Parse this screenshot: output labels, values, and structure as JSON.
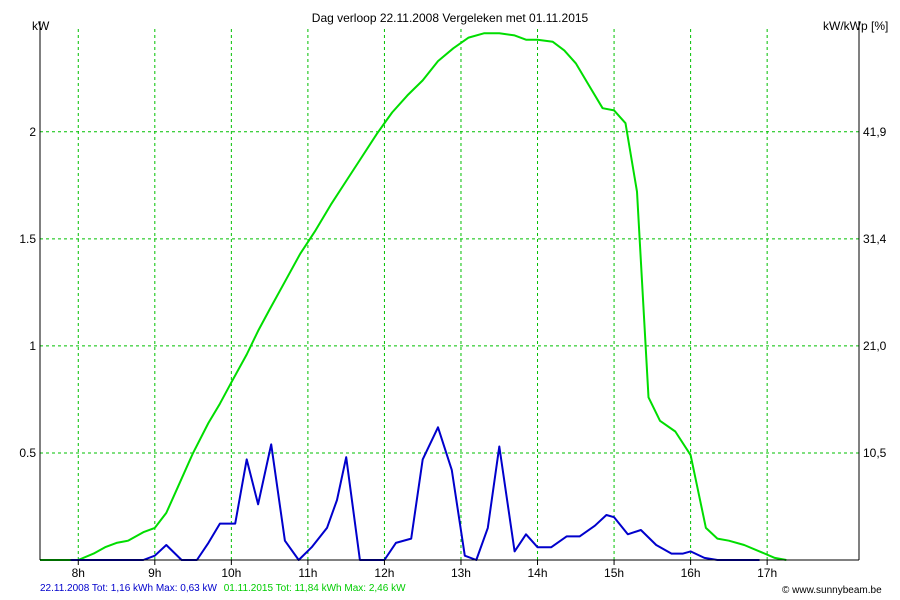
{
  "header": {
    "title": "Dag  verloop 22.11.2008   Vergeleken met 01.11.2015",
    "left_unit": "kW",
    "right_unit": "kW/kWp [%]"
  },
  "footer": {
    "series1_summary": "22.11.2008 Tot: 1,16 kWh Max: 0,63 kW",
    "series2_summary": "01.11.2015 Tot: 11,84 kWh Max: 2,46 kW",
    "credit": "© www.sunnybeam.be"
  },
  "colors": {
    "series1": "#0000cc",
    "series2": "#00dd00",
    "grid": "#00c000",
    "axis": "#000000"
  },
  "chart_data": {
    "type": "line",
    "title": "Dag  verloop 22.11.2008   Vergeleken met 01.11.2015",
    "ylabel": "kW",
    "y2label": "kW/kWp [%]",
    "xlim": [
      7.5,
      18.2
    ],
    "ylim": [
      0,
      2.48
    ],
    "grid": true,
    "x_ticks": [
      {
        "value": 8,
        "label": "8h"
      },
      {
        "value": 9,
        "label": "9h"
      },
      {
        "value": 10,
        "label": "10h"
      },
      {
        "value": 11,
        "label": "11h"
      },
      {
        "value": 12,
        "label": "12h"
      },
      {
        "value": 13,
        "label": "13h"
      },
      {
        "value": 14,
        "label": "14h"
      },
      {
        "value": 15,
        "label": "15h"
      },
      {
        "value": 16,
        "label": "16h"
      },
      {
        "value": 17,
        "label": "17h"
      }
    ],
    "y_ticks": [
      {
        "value": 0.5,
        "label": "0.5"
      },
      {
        "value": 1,
        "label": "1"
      },
      {
        "value": 1.5,
        "label": "1.5"
      },
      {
        "value": 2,
        "label": "2"
      }
    ],
    "y2_ticks": [
      {
        "value": 0.5,
        "label": "10,5"
      },
      {
        "value": 1,
        "label": "21,0"
      },
      {
        "value": 1.5,
        "label": "31,4"
      },
      {
        "value": 2,
        "label": "41,9"
      }
    ],
    "series": [
      {
        "date": "22.11.2008",
        "color": "#0000cc",
        "x": [
          7.9,
          8.65,
          8.85,
          9.0,
          9.15,
          9.35,
          9.55,
          9.7,
          9.85,
          10.0,
          10.05,
          10.2,
          10.35,
          10.52,
          10.7,
          10.88,
          11.05,
          11.25,
          11.38,
          11.5,
          11.68,
          11.75,
          12.0,
          12.15,
          12.35,
          12.5,
          12.7,
          12.88,
          13.05,
          13.2,
          13.35,
          13.5,
          13.7,
          13.85,
          14.0,
          14.18,
          14.38,
          14.55,
          14.75,
          14.9,
          15.0,
          15.18,
          15.35,
          15.55,
          15.75,
          15.9,
          16.0,
          16.18,
          16.35,
          16.6,
          16.9
        ],
        "y": [
          0.0,
          0.0,
          0.0,
          0.02,
          0.07,
          0.0,
          0.0,
          0.08,
          0.17,
          0.17,
          0.17,
          0.47,
          0.26,
          0.54,
          0.09,
          0.0,
          0.06,
          0.15,
          0.28,
          0.48,
          0.0,
          0.0,
          0.0,
          0.08,
          0.1,
          0.47,
          0.62,
          0.42,
          0.02,
          0.0,
          0.15,
          0.53,
          0.04,
          0.12,
          0.06,
          0.06,
          0.11,
          0.11,
          0.16,
          0.21,
          0.2,
          0.12,
          0.14,
          0.07,
          0.03,
          0.03,
          0.04,
          0.01,
          0.0,
          0.0,
          0.0
        ]
      },
      {
        "date": "01.11.2015",
        "color": "#00dd00",
        "x": [
          7.5,
          8.0,
          8.2,
          8.35,
          8.5,
          8.65,
          8.85,
          9.0,
          9.15,
          9.3,
          9.5,
          9.7,
          9.85,
          10.0,
          10.2,
          10.35,
          10.5,
          10.7,
          10.9,
          11.1,
          11.3,
          11.5,
          11.7,
          11.9,
          12.1,
          12.3,
          12.5,
          12.7,
          12.9,
          13.1,
          13.3,
          13.5,
          13.7,
          13.85,
          14.0,
          14.2,
          14.35,
          14.5,
          14.7,
          14.85,
          15.0,
          15.15,
          15.3,
          15.45,
          15.6,
          15.8,
          16.0,
          16.2,
          16.35,
          16.5,
          16.7,
          16.9,
          17.1,
          17.25
        ],
        "y": [
          0.0,
          0.0,
          0.03,
          0.06,
          0.08,
          0.09,
          0.13,
          0.15,
          0.22,
          0.34,
          0.5,
          0.64,
          0.73,
          0.83,
          0.96,
          1.07,
          1.17,
          1.3,
          1.43,
          1.54,
          1.66,
          1.77,
          1.88,
          1.99,
          2.09,
          2.17,
          2.24,
          2.33,
          2.39,
          2.44,
          2.46,
          2.46,
          2.45,
          2.43,
          2.43,
          2.42,
          2.38,
          2.32,
          2.2,
          2.11,
          2.1,
          2.04,
          1.72,
          0.76,
          0.65,
          0.6,
          0.49,
          0.15,
          0.1,
          0.09,
          0.07,
          0.04,
          0.01,
          0.0
        ]
      }
    ]
  }
}
